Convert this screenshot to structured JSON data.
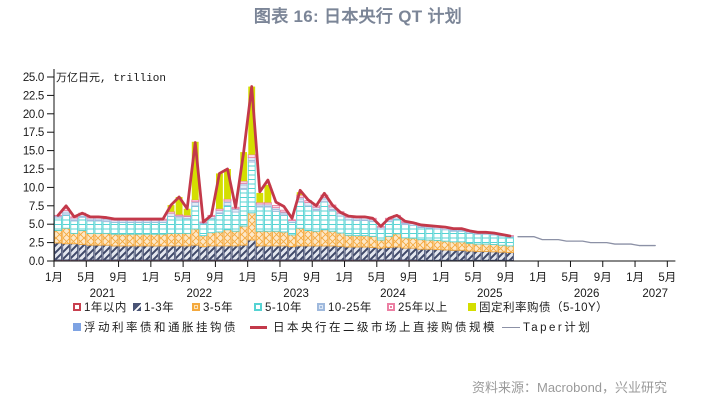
{
  "title": "图表 16: 日本央行 QT 计划",
  "source": "资料来源：Macrobond，兴业研究",
  "chart_data": {
    "type": "bar",
    "stacked": true,
    "title": "图表 16: 日本央行 QT 计划",
    "xlabel": "",
    "ylabel": "万亿日元, trillion",
    "ylim": [
      0,
      25
    ],
    "yticks": [
      "0.0",
      "2.5",
      "5.0",
      "7.5",
      "10.0",
      "12.5",
      "15.0",
      "17.5",
      "20.0",
      "22.5",
      "25.0"
    ],
    "x_range": [
      "2021-01",
      "2027-05"
    ],
    "xtick_labels": {
      "1": "1月",
      "5": "5月",
      "9": "9月"
    },
    "years": [
      "2021",
      "2022",
      "2023",
      "2024",
      "2025",
      "2026",
      "2027"
    ],
    "grid": false,
    "legend_position": "bottom",
    "categories": [
      "2021-01",
      "2021-02",
      "2021-03",
      "2021-04",
      "2021-05",
      "2021-06",
      "2021-07",
      "2021-08",
      "2021-09",
      "2021-10",
      "2021-11",
      "2021-12",
      "2022-01",
      "2022-02",
      "2022-03",
      "2022-04",
      "2022-05",
      "2022-06",
      "2022-07",
      "2022-08",
      "2022-09",
      "2022-10",
      "2022-11",
      "2022-12",
      "2023-01",
      "2023-02",
      "2023-03",
      "2023-04",
      "2023-05",
      "2023-06",
      "2023-07",
      "2023-08",
      "2023-09",
      "2023-10",
      "2023-11",
      "2023-12",
      "2024-01",
      "2024-02",
      "2024-03",
      "2024-04",
      "2024-05",
      "2024-06",
      "2024-07",
      "2024-08",
      "2024-09",
      "2024-10",
      "2024-11",
      "2024-12",
      "2025-01",
      "2025-02",
      "2025-03",
      "2025-04",
      "2025-05",
      "2025-06",
      "2025-07",
      "2025-08",
      "2025-09"
    ],
    "series": [
      {
        "name": "1年以内",
        "color": "#c8404f",
        "hatch": "outline",
        "values": [
          0.15,
          0.15,
          0.15,
          0.15,
          0.15,
          0.15,
          0.15,
          0.15,
          0.15,
          0.15,
          0.15,
          0.15,
          0.15,
          0.15,
          0.15,
          0.15,
          0.15,
          0.15,
          0.15,
          0.15,
          0.15,
          0.15,
          0.15,
          0.15,
          0.15,
          0.15,
          0.15,
          0.15,
          0.15,
          0.15,
          0.15,
          0.15,
          0.15,
          0.15,
          0.15,
          0.15,
          0.15,
          0.15,
          0.15,
          0.15,
          0.15,
          0.15,
          0.15,
          0.15,
          0.15,
          0.1,
          0.1,
          0.1,
          0.1,
          0.1,
          0.1,
          0.1,
          0.1,
          0.1,
          0.1,
          0.1,
          0.1
        ]
      },
      {
        "name": "1-3年",
        "color": "#4a5475",
        "hatch": "diagonal",
        "values": [
          2.3,
          2.2,
          2.2,
          2.1,
          2.0,
          2.0,
          2.0,
          1.9,
          1.9,
          1.9,
          1.9,
          1.9,
          1.9,
          1.9,
          1.9,
          1.9,
          1.9,
          2.0,
          1.8,
          1.9,
          1.9,
          1.9,
          1.9,
          2.0,
          2.7,
          1.9,
          1.9,
          1.9,
          1.9,
          1.8,
          1.9,
          1.9,
          1.9,
          1.9,
          1.9,
          1.85,
          1.75,
          1.75,
          1.75,
          1.7,
          1.6,
          1.7,
          1.75,
          1.6,
          1.6,
          1.5,
          1.5,
          1.45,
          1.4,
          1.35,
          1.35,
          1.25,
          1.2,
          1.2,
          1.15,
          1.1,
          1.05
        ]
      },
      {
        "name": "3-5年",
        "color": "#f4a93e",
        "hatch": "cross",
        "values": [
          1.7,
          2.1,
          1.4,
          1.9,
          1.6,
          1.6,
          1.6,
          1.6,
          1.6,
          1.6,
          1.6,
          1.6,
          1.6,
          1.6,
          1.7,
          1.7,
          1.7,
          2.2,
          1.5,
          1.8,
          1.9,
          2.2,
          2.0,
          2.6,
          3.7,
          2.0,
          2.0,
          2.0,
          1.9,
          1.6,
          2.4,
          2.1,
          2.0,
          2.2,
          2.0,
          1.8,
          1.6,
          1.55,
          1.55,
          1.5,
          1.1,
          1.5,
          1.8,
          1.4,
          1.35,
          1.3,
          1.25,
          1.25,
          1.2,
          1.15,
          1.15,
          1.05,
          1.0,
          1.0,
          1.0,
          0.95,
          0.9
        ]
      },
      {
        "name": "5-10年",
        "color": "#55d3d3",
        "hatch": "horizontal",
        "values": [
          1.7,
          1.8,
          1.7,
          1.8,
          1.7,
          1.7,
          1.6,
          1.6,
          1.6,
          1.6,
          1.6,
          1.6,
          1.6,
          1.6,
          2.3,
          2.1,
          2.0,
          3.1,
          1.6,
          1.9,
          2.5,
          3.3,
          2.6,
          5.0,
          6.9,
          3.3,
          3.3,
          2.7,
          2.3,
          1.7,
          3.6,
          3.3,
          2.8,
          3.8,
          2.8,
          2.3,
          2.1,
          2.05,
          2.05,
          2.0,
          1.5,
          2.0,
          2.0,
          1.8,
          1.75,
          1.65,
          1.6,
          1.55,
          1.55,
          1.45,
          1.45,
          1.4,
          1.35,
          1.35,
          1.3,
          1.25,
          1.2
        ]
      },
      {
        "name": "10-25年",
        "color": "#9fb9dd",
        "hatch": "horizontal-blue",
        "values": [
          0.3,
          0.6,
          0.4,
          0.35,
          0.4,
          0.4,
          0.4,
          0.3,
          0.3,
          0.3,
          0.3,
          0.3,
          0.3,
          0.3,
          0.45,
          0.3,
          0.3,
          0.6,
          0.2,
          0.3,
          0.45,
          0.6,
          0.45,
          0.8,
          0.6,
          0.4,
          0.4,
          0.5,
          0.4,
          0.25,
          0.6,
          0.5,
          0.45,
          0.6,
          0.5,
          0.4,
          0.35,
          0.35,
          0.35,
          0.3,
          0.25,
          0.3,
          0.35,
          0.3,
          0.25,
          0.25,
          0.25,
          0.25,
          0.25,
          0.25,
          0.25,
          0.2,
          0.2,
          0.2,
          0.2,
          0.15,
          0.15
        ]
      },
      {
        "name": "25年以上",
        "color": "#ec7fa3",
        "hatch": "light",
        "values": [
          0.05,
          0.3,
          0.15,
          0.2,
          0.15,
          0.15,
          0.15,
          0.15,
          0.15,
          0.15,
          0.15,
          0.15,
          0.15,
          0.15,
          0.2,
          0.15,
          0.15,
          0.25,
          0.05,
          0.15,
          0.2,
          0.25,
          0.2,
          0.3,
          0.4,
          0.2,
          0.2,
          0.3,
          0.25,
          0.1,
          0.3,
          0.25,
          0.2,
          0.3,
          0.25,
          0.2,
          0.15,
          0.15,
          0.15,
          0.15,
          0.1,
          0.15,
          0.15,
          0.15,
          0.1,
          0.1,
          0.1,
          0.1,
          0.1,
          0.1,
          0.1,
          0.1,
          0.05,
          0.05,
          0.05,
          0.05,
          0.05
        ]
      },
      {
        "name": "固定利率购债（5-10Y）",
        "color": "#d4de00",
        "hatch": "solid",
        "values": [
          0,
          0,
          0,
          0,
          0,
          0,
          0,
          0,
          0,
          0,
          0,
          0,
          0,
          0,
          0.9,
          2.4,
          0.9,
          7.9,
          0,
          0,
          4.8,
          4.1,
          0,
          3.95,
          9.25,
          1.3,
          2.4,
          0,
          0,
          0,
          0.4,
          0,
          0,
          0,
          0,
          0,
          0,
          0,
          0,
          0,
          0,
          0,
          0,
          0,
          0,
          0,
          0,
          0,
          0,
          0,
          0,
          0,
          0,
          0,
          0,
          0,
          0
        ]
      },
      {
        "name": "浮动利率债和通胀挂钩债",
        "color": "#7ea3e3",
        "hatch": "solid",
        "values": [
          0,
          0,
          0,
          0,
          0,
          0,
          0,
          0,
          0,
          0,
          0,
          0,
          0,
          0,
          0,
          0,
          0,
          0,
          0,
          0,
          0,
          0,
          0,
          0,
          0,
          0,
          0,
          0,
          0,
          0,
          0,
          0,
          0,
          0,
          0,
          0,
          0,
          0,
          0,
          0,
          0,
          0,
          0,
          0,
          0,
          0,
          0,
          0,
          0,
          0,
          0,
          0,
          0,
          0,
          0,
          0,
          0
        ]
      }
    ],
    "lines": [
      {
        "name": "日本央行在二级市场上直接购债规模",
        "color": "#c3394a",
        "width": 2.8,
        "x_start": "2021-01",
        "values": [
          6.2,
          7.5,
          6.0,
          6.5,
          6.0,
          6.0,
          5.9,
          5.7,
          5.7,
          5.7,
          5.7,
          5.7,
          5.7,
          5.7,
          7.6,
          8.7,
          7.1,
          16.1,
          5.3,
          6.2,
          11.9,
          12.5,
          7.3,
          14.8,
          23.7,
          9.4,
          11.0,
          8.0,
          7.4,
          5.8,
          9.6,
          8.3,
          7.5,
          9.2,
          7.6,
          6.6,
          6.1,
          6.0,
          6.0,
          5.8,
          4.7,
          5.8,
          6.2,
          5.4,
          5.2,
          4.9,
          4.8,
          4.7,
          4.6,
          4.4,
          4.4,
          4.1,
          3.9,
          3.9,
          3.8,
          3.6,
          3.4
        ]
      },
      {
        "name": "Taper计划",
        "color": "#8c91a6",
        "width": 1.3,
        "x_start": "2025-10",
        "values": [
          3.3,
          3.3,
          3.3,
          2.9,
          2.9,
          2.9,
          2.7,
          2.7,
          2.7,
          2.5,
          2.5,
          2.5,
          2.3,
          2.3,
          2.3,
          2.1,
          2.1,
          2.1
        ]
      }
    ]
  }
}
